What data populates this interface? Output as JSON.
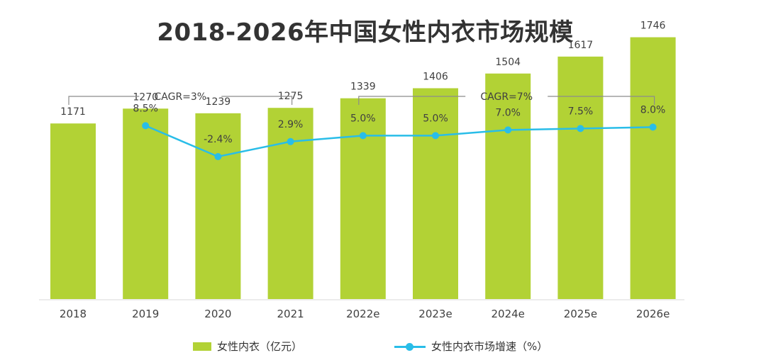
{
  "chart_data": {
    "type": "bar",
    "title": "2018-2026年中国女性内衣市场规模",
    "categories": [
      "2018",
      "2019",
      "2020",
      "2021",
      "2022e",
      "2023e",
      "2024e",
      "2025e",
      "2026e"
    ],
    "series": [
      {
        "name": "女性内衣（亿元）",
        "type": "bar",
        "color": "#b2d235",
        "values": [
          1171,
          1270,
          1239,
          1275,
          1339,
          1406,
          1504,
          1617,
          1746
        ]
      },
      {
        "name": "女性内衣市场增速（%）",
        "type": "line",
        "color": "#29bde8",
        "values": [
          null,
          8.5,
          -2.4,
          2.9,
          5.0,
          5.0,
          7.0,
          7.5,
          8.0
        ],
        "labels": [
          "",
          "8.5%",
          "-2.4%",
          "2.9%",
          "5.0%",
          "5.0%",
          "7.0%",
          "7.5%",
          "8.0%"
        ]
      }
    ],
    "annotations": [
      {
        "text": "CAGR=3%",
        "from": "2018",
        "to": "2021"
      },
      {
        "text": "CAGR=7%",
        "from": "2022e",
        "to": "2026e"
      }
    ],
    "legend_position": "bottom",
    "grid": false
  }
}
